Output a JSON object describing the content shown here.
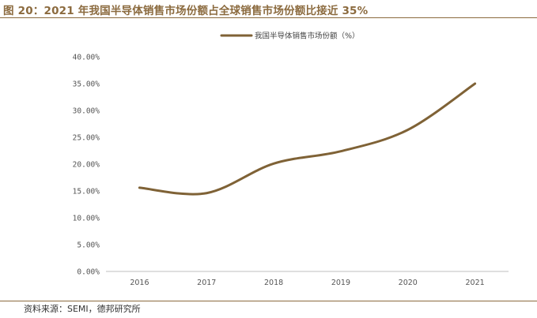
{
  "header": {
    "title": "图 20：2021 年我国半导体销售市场份额占全球销售市场份额比接近 35%"
  },
  "footer": {
    "source": "资料来源：SEMI，德邦研究所"
  },
  "colors": {
    "accent": "#8B6A3E",
    "line": "#7F6236"
  },
  "chart_data": {
    "type": "line",
    "title": "图 20：2021 年我国半导体销售市场份额占全球销售市场份额比接近 35%",
    "categories": [
      "2016",
      "2017",
      "2018",
      "2019",
      "2020",
      "2021"
    ],
    "series": [
      {
        "name": "我国半导体销售市场份额（%）",
        "values": [
          15.6,
          14.6,
          20.1,
          22.4,
          26.4,
          35.0
        ]
      }
    ],
    "yticks": [
      "0.00%",
      "5.00%",
      "10.00%",
      "15.00%",
      "20.00%",
      "25.00%",
      "30.00%",
      "35.00%",
      "40.00%"
    ],
    "ylim": [
      0,
      40
    ],
    "legend_position": "top",
    "grid": false,
    "xlabel": "",
    "ylabel": ""
  }
}
